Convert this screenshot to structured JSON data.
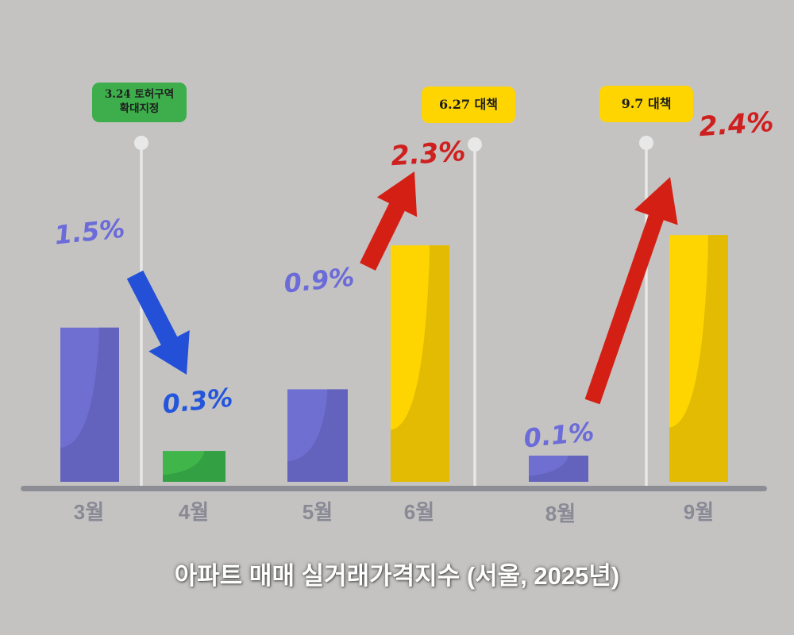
{
  "caption": "아파트 매매 실거래가격지수 (서울, 2025년)",
  "callouts": [
    {
      "line1": "3.24 토허구역",
      "line2": "확대지정",
      "color": "#3dae4b"
    },
    {
      "line1": "6.27 대책",
      "color": "#fed500"
    },
    {
      "line1": "9.7 대책",
      "color": "#fed500"
    }
  ],
  "colors": {
    "background": "#c4c3c1",
    "purple": "#6f6fd2",
    "green": "#3fb54a",
    "yellow": "#fed500",
    "label_purple": "#6b6bd9",
    "label_blue": "#2456dd",
    "label_red": "#cf2020",
    "arrow_down": "#2450d8",
    "arrow_up": "#d42014",
    "pole": "#e8e8e8",
    "baseline": "#8d8d96"
  },
  "chart_data": {
    "type": "bar",
    "title": "아파트 매매 실거래가격지수 (서울, 2025년)",
    "categories": [
      "3월",
      "4월",
      "5월",
      "6월",
      "8월",
      "9월"
    ],
    "values": [
      1.5,
      0.3,
      0.9,
      2.3,
      0.1,
      2.4
    ],
    "value_labels": [
      "1.5%",
      "0.3%",
      "0.9%",
      "2.3%",
      "0.1%",
      "2.4%"
    ],
    "bar_colors": [
      "purple",
      "green",
      "purple",
      "yellow",
      "purple",
      "yellow"
    ],
    "label_colors": [
      "label_purple",
      "label_blue",
      "label_purple",
      "label_red",
      "label_purple",
      "label_red"
    ],
    "ylim": [
      0,
      2.4
    ],
    "annotations": [
      {
        "text": "3.24 토허구역 확대지정",
        "after_category": "3월"
      },
      {
        "text": "6.27 대책",
        "after_category": "6월"
      },
      {
        "text": "9.7 대책",
        "after_category": "8월"
      }
    ],
    "arrows": [
      {
        "from": "3월",
        "to": "4월",
        "direction": "down"
      },
      {
        "from": "5월",
        "to": "6월",
        "direction": "up"
      },
      {
        "from": "8월",
        "to": "9월",
        "direction": "up"
      }
    ],
    "grid": false,
    "legend": "none"
  }
}
